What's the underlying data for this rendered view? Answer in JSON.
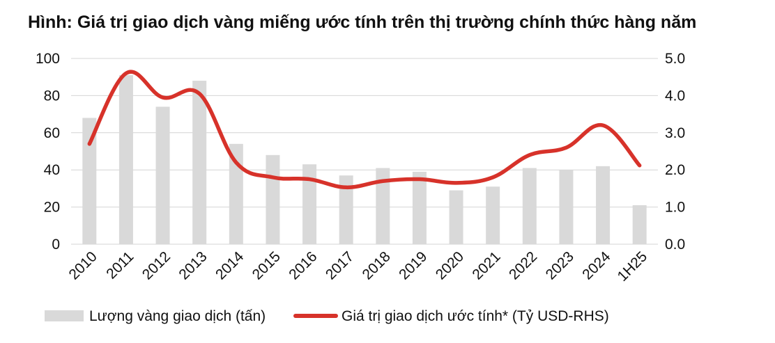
{
  "chart_data": {
    "type": "bar",
    "title": "Hình: Giá trị giao dịch vàng miếng ước tính trên thị trường chính thức hàng năm",
    "categories": [
      "2010",
      "2011",
      "2012",
      "2013",
      "2014",
      "2015",
      "2016",
      "2017",
      "2018",
      "2019",
      "2020",
      "2021",
      "2022",
      "2023",
      "2024",
      "1H25"
    ],
    "series": [
      {
        "name": "Lượng vàng giao dịch (tấn)",
        "type": "bar",
        "axis": "left",
        "color": "#d9d9d9",
        "values": [
          68,
          91,
          74,
          88,
          54,
          48,
          43,
          37,
          41,
          39,
          29,
          31,
          41,
          40,
          42,
          21
        ]
      },
      {
        "name": "Giá trị giao dịch ước tính* (Tỷ USD-RHS)",
        "type": "line",
        "axis": "right",
        "color": "#d7322a",
        "values": [
          2.7,
          4.6,
          3.95,
          4.05,
          2.2,
          1.8,
          1.75,
          1.53,
          1.7,
          1.75,
          1.65,
          1.8,
          2.4,
          2.6,
          3.2,
          2.12
        ]
      }
    ],
    "y_left": {
      "ylim": [
        0,
        100
      ],
      "ticks": [
        "0",
        "20",
        "40",
        "60",
        "80",
        "100"
      ]
    },
    "y_right": {
      "ylim": [
        0,
        5
      ],
      "ticks": [
        "0.0",
        "1.0",
        "2.0",
        "3.0",
        "4.0",
        "5.0"
      ]
    },
    "grid": true,
    "legend_position": "bottom-left"
  }
}
